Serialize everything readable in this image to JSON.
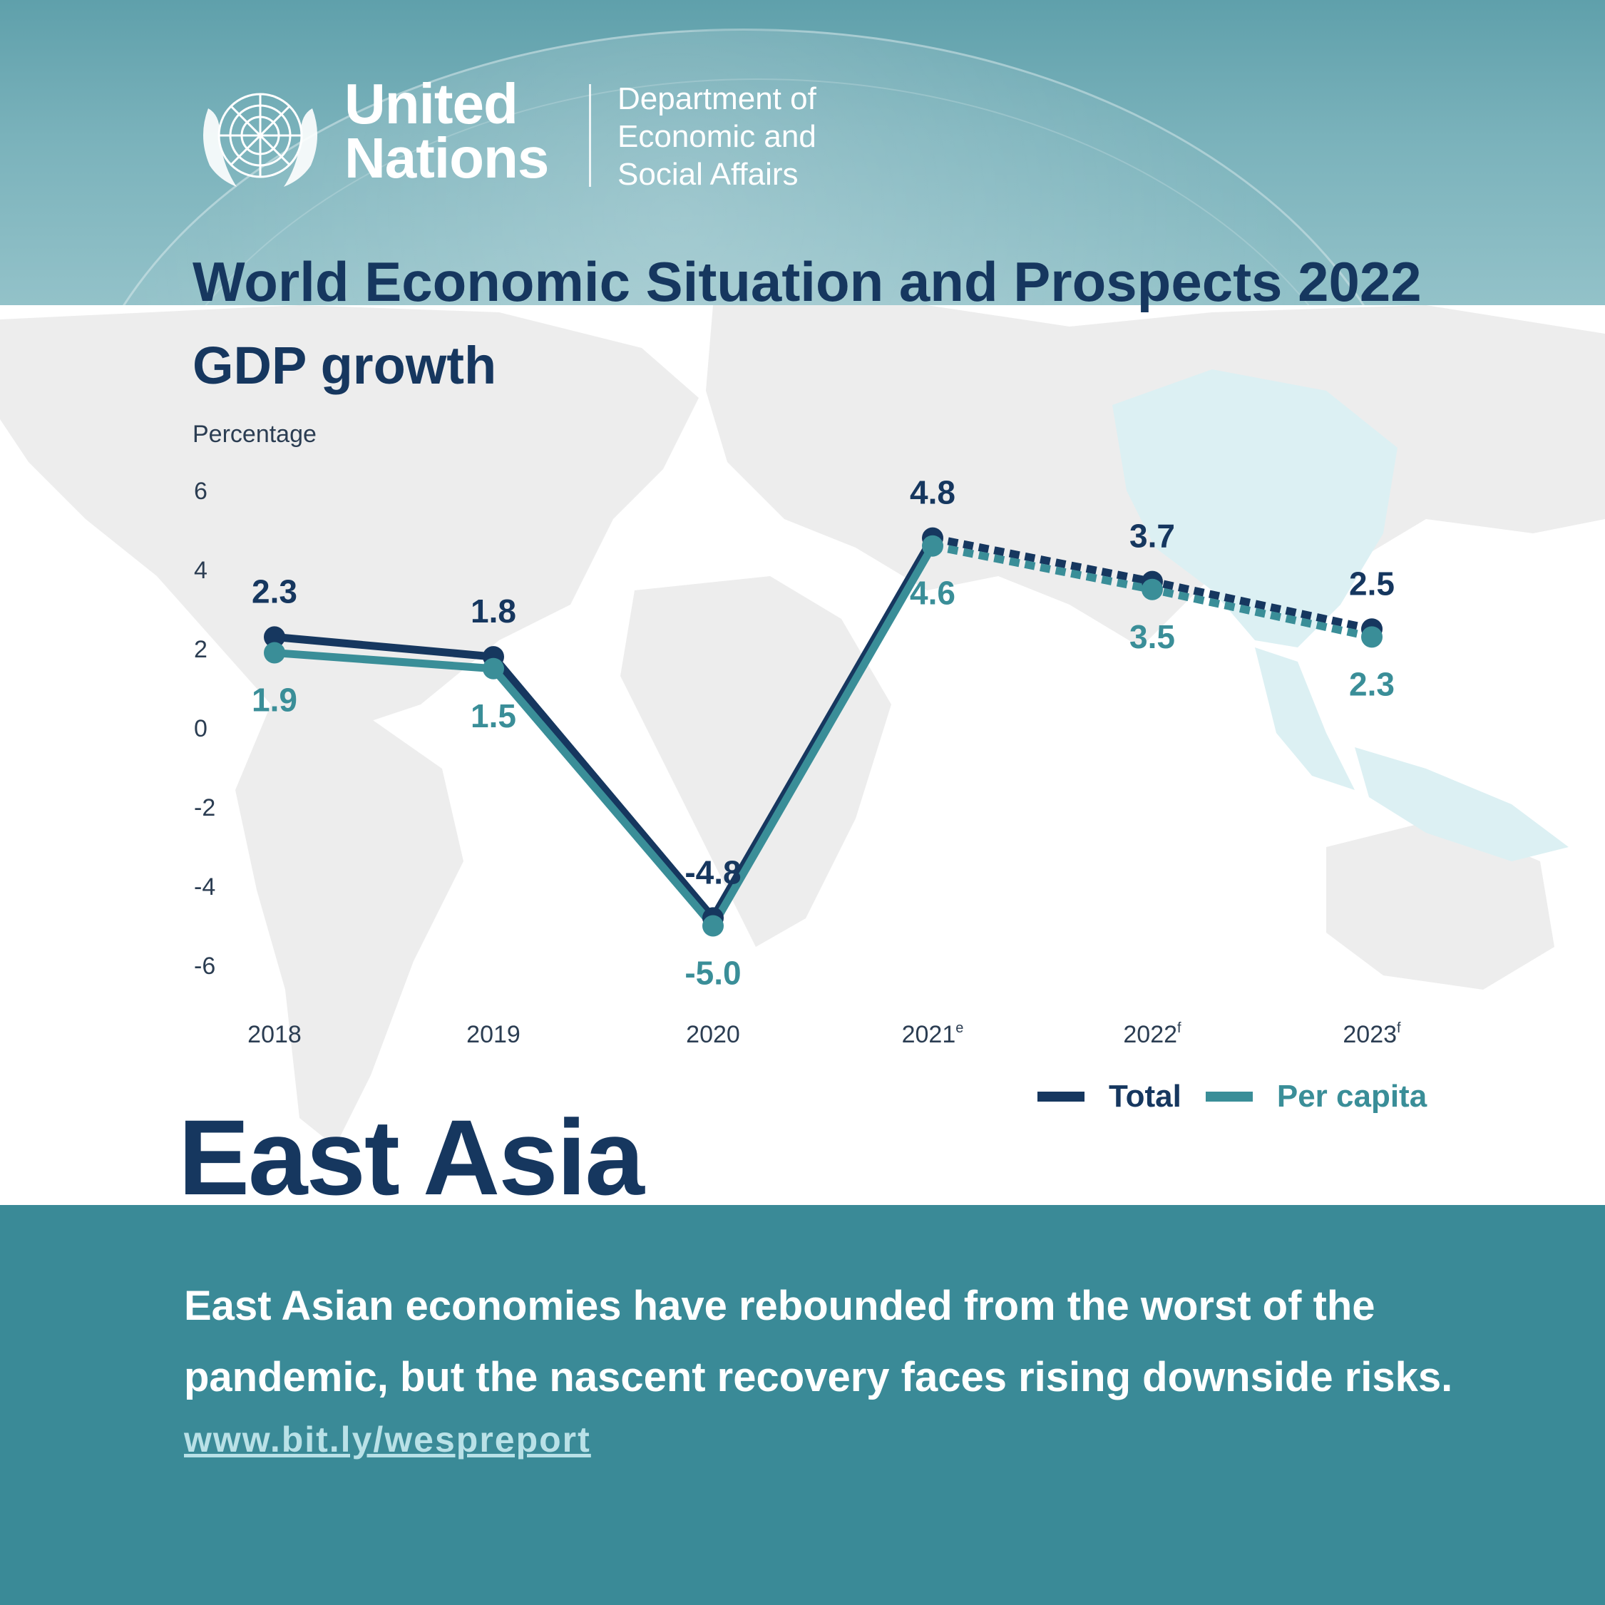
{
  "header": {
    "org_line1": "United",
    "org_line2": "Nations",
    "dept_line1": "Department of",
    "dept_line2": "Economic and",
    "dept_line3": "Social Affairs",
    "title": "World Economic Situation and Prospects 2022"
  },
  "chart_data": {
    "type": "line",
    "title": "GDP growth",
    "ylabel": "Percentage",
    "xlabel": "",
    "ylim": [
      -6,
      6
    ],
    "yticks": [
      "6",
      "4",
      "2",
      "0",
      "-2",
      "-4",
      "-6"
    ],
    "categories": [
      "2018",
      "2019",
      "2020",
      "2021",
      "2022",
      "2023"
    ],
    "category_superscripts": [
      "",
      "",
      "",
      "e",
      "f",
      "f"
    ],
    "forecast_from_index": 3,
    "grid": false,
    "legend_position": "bottom-right",
    "series": [
      {
        "name": "Total",
        "values": [
          2.3,
          1.8,
          -4.8,
          4.8,
          3.7,
          2.5
        ],
        "labels": [
          "2.3",
          "1.8",
          "-4.8",
          "4.8",
          "3.7",
          "2.5"
        ],
        "color": "#16375f"
      },
      {
        "name": "Per capita",
        "values": [
          1.9,
          1.5,
          -5.0,
          4.6,
          3.5,
          2.3
        ],
        "labels": [
          "1.9",
          "1.5",
          "-5.0",
          "4.6",
          "3.5",
          "2.3"
        ],
        "color": "#3a8e98"
      }
    ]
  },
  "region": "East Asia",
  "summary": {
    "line1": "East Asian economies have rebounded from the worst of the",
    "line2": "pandemic, but the nascent recovery faces rising downside risks."
  },
  "link": "www.bit.ly/wespreport",
  "colors": {
    "navy": "#16375f",
    "teal": "#3a8e98",
    "footer": "#3a8a97",
    "header": "#7ab2bb"
  }
}
